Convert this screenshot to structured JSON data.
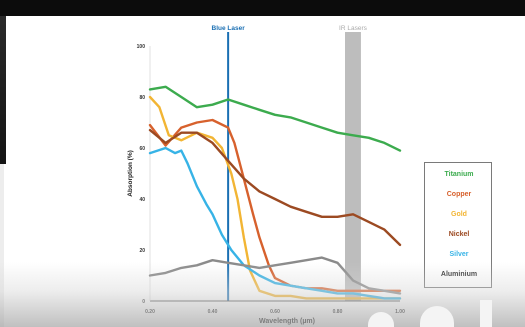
{
  "chart_data": {
    "type": "line",
    "xlabel": "Wavelength (µm)",
    "ylabel": "Absorption (%)",
    "xlim": [
      0.2,
      1.0
    ],
    "ylim": [
      0,
      100
    ],
    "x_ticks": [
      "0.20",
      "0.40",
      "0.60",
      "0.80",
      "1.00"
    ],
    "y_ticks": [
      "0",
      "20",
      "40",
      "60",
      "80",
      "100"
    ],
    "x_tick_values": [
      0.2,
      0.4,
      0.6,
      0.8,
      1.0
    ],
    "y_tick_values": [
      0,
      20,
      40,
      60,
      80,
      100
    ],
    "grid": false,
    "legend_position": "right",
    "annotations": {
      "blue_laser": {
        "label": "Blue Laser",
        "x": 0.45,
        "color": "#1a6fb3"
      },
      "ir_lasers": {
        "label": "IR Lasers",
        "x_range": [
          0.824,
          0.875
        ],
        "color": "#bdbdbd"
      }
    },
    "series": [
      {
        "name": "Titanium",
        "color": "#3cab4e",
        "x": [
          0.2,
          0.25,
          0.3,
          0.35,
          0.4,
          0.45,
          0.5,
          0.55,
          0.6,
          0.65,
          0.7,
          0.75,
          0.8,
          0.85,
          0.9,
          0.95,
          1.0
        ],
        "y": [
          83,
          84,
          80,
          76,
          77,
          79,
          77,
          75,
          73,
          72,
          70,
          68,
          66,
          65,
          64,
          62,
          59
        ]
      },
      {
        "name": "Copper",
        "color": "#d7612d",
        "x": [
          0.2,
          0.25,
          0.3,
          0.35,
          0.4,
          0.45,
          0.47,
          0.5,
          0.53,
          0.55,
          0.58,
          0.6,
          0.65,
          0.7,
          0.75,
          0.8,
          0.85,
          0.9,
          0.95,
          1.0
        ],
        "y": [
          69,
          61,
          68,
          70,
          71,
          68,
          62,
          48,
          34,
          25,
          14,
          9,
          6,
          5,
          5,
          4,
          4,
          4,
          4,
          4
        ]
      },
      {
        "name": "Gold",
        "color": "#f2b534",
        "x": [
          0.2,
          0.23,
          0.26,
          0.3,
          0.35,
          0.4,
          0.43,
          0.46,
          0.48,
          0.5,
          0.52,
          0.55,
          0.6,
          0.65,
          0.7,
          0.75,
          0.8,
          0.85,
          0.9,
          0.95,
          1.0
        ],
        "y": [
          80,
          76,
          65,
          63,
          66,
          64,
          60,
          50,
          40,
          25,
          12,
          4,
          2,
          2,
          1,
          1,
          1,
          1,
          1,
          1,
          1
        ]
      },
      {
        "name": "Nickel",
        "color": "#9c4a22",
        "x": [
          0.2,
          0.25,
          0.3,
          0.35,
          0.4,
          0.45,
          0.5,
          0.55,
          0.6,
          0.65,
          0.7,
          0.75,
          0.8,
          0.85,
          0.9,
          0.95,
          1.0
        ],
        "y": [
          67,
          62,
          66,
          66,
          62,
          55,
          48,
          43,
          40,
          37,
          35,
          33,
          33,
          34,
          31,
          28,
          22
        ]
      },
      {
        "name": "Silver",
        "color": "#37b3e6",
        "x": [
          0.2,
          0.25,
          0.28,
          0.3,
          0.32,
          0.35,
          0.38,
          0.4,
          0.43,
          0.46,
          0.5,
          0.55,
          0.6,
          0.65,
          0.7,
          0.75,
          0.8,
          0.85,
          0.9,
          0.95,
          1.0
        ],
        "y": [
          58,
          60,
          58,
          59,
          54,
          45,
          38,
          34,
          26,
          20,
          14,
          10,
          7,
          6,
          5,
          4,
          3,
          3,
          2,
          1,
          1
        ]
      },
      {
        "name": "Aluminium",
        "color": "#8a8a8a",
        "x": [
          0.2,
          0.25,
          0.3,
          0.35,
          0.4,
          0.45,
          0.5,
          0.55,
          0.6,
          0.65,
          0.7,
          0.75,
          0.8,
          0.85,
          0.9,
          0.95,
          1.0
        ],
        "y": [
          10,
          11,
          13,
          14,
          16,
          15,
          14,
          13,
          14,
          15,
          16,
          17,
          15,
          8,
          5,
          4,
          3
        ]
      }
    ]
  }
}
